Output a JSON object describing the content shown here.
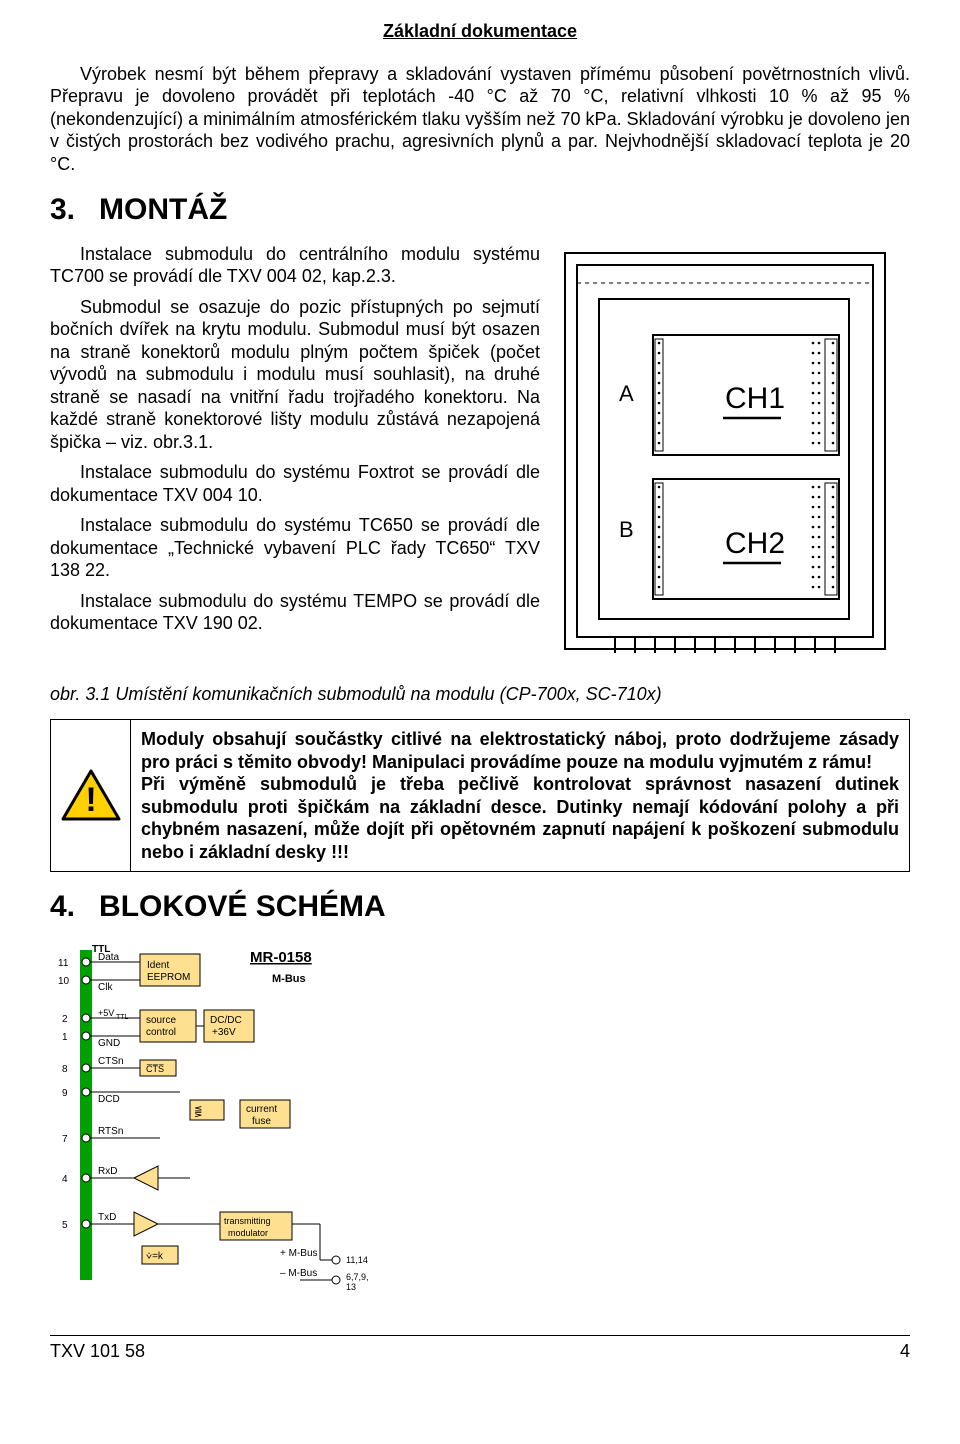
{
  "header": {
    "title": "Základní dokumentace"
  },
  "intro": {
    "p1": "Výrobek nesmí být během přepravy a skladování vystaven přímému působení povětrnostních vlivů. Přepravu je dovoleno provádět při teplotách -40 °C až 70 °C, relativní vlhkosti 10 % až 95 % (nekondenzující) a minimálním atmosférickém tlaku vyšším než 70 kPa. Skladování výrobku je dovoleno jen v čistých prostorách bez vodivého prachu, agresivních plynů a par. Nejvhodnější skladovací teplota je 20 °C."
  },
  "sections": {
    "s3": {
      "num": "3.",
      "title": "MONTÁŽ"
    },
    "s4": {
      "num": "4.",
      "title": "BLOKOVÉ SCHÉMA"
    }
  },
  "montaz": {
    "p1": "Instalace submodulu do centrálního modulu systému TC700 se provádí dle TXV 004 02, kap.2.3.",
    "p2": "Submodul se osazuje do pozic přístupných po sejmutí bočních dvířek na krytu modulu. Submodul musí být osazen na straně konektorů modulu plným počtem špiček (počet vývodů na submodulu i modulu musí souhlasit), na druhé straně se nasadí na vnitřní řadu trojřadého konektoru. Na každé straně konektorové lišty modulu zůstává nezapojená špička – viz. obr.3.1.",
    "p3": "Instalace submodulu do systému Foxtrot se provádí dle dokumentace TXV 004 10.",
    "p4": "Instalace submodulu do systému TC650 se provádí dle dokumentace „Technické vybavení PLC řady TC650“ TXV 138 22.",
    "p5": "Instalace submodulu do systému TEMPO se provádí dle dokumentace TXV 190 02."
  },
  "figure31": {
    "caption": "obr. 3.1 Umístění komunikačních submodulů na modulu (CP-700x, SC-710x)",
    "labels": {
      "A": "A",
      "B": "B",
      "CH1": "CH1",
      "CH2": "CH2"
    },
    "stroke": "#000000",
    "fill": "#ffffff",
    "pin_color": "#000000"
  },
  "warning": {
    "text": "Moduly obsahují součástky citlivé na elektrostatický náboj, proto dodržujeme zásady pro práci s těmito obvody! Manipulaci provádíme pouze na modulu vyjmutém z rámu!\nPři výměně submodulů je třeba pečlivě kontrolovat správnost nasazení dutinek submodulu proti špičkám na základní desce. Dutinky nemají kódování polohy a při chybném nasazení, může dojít při opětovném zapnutí napájení k poškození submodulu nebo i základní desky !!!",
    "icon_colors": {
      "border": "#000000",
      "fill": "#ffd000",
      "mark": "#000000"
    }
  },
  "block_diagram": {
    "title": "MR-0158",
    "subtitle": "M-Bus",
    "accent": "#00a000",
    "box_fill": "#ffe090",
    "stroke": "#000000",
    "pins": [
      {
        "n": "11",
        "label": "Data",
        "group": "TTL"
      },
      {
        "n": "10",
        "label": "Clk",
        "group": "TTL"
      },
      {
        "n": "2",
        "label": "+5V_TTL"
      },
      {
        "n": "1",
        "label": "GND"
      },
      {
        "n": "8",
        "label": "CTSn"
      },
      {
        "n": "9",
        "label": "DCD"
      },
      {
        "n": "7",
        "label": "RTSn"
      },
      {
        "n": "4",
        "label": "RxD"
      },
      {
        "n": "5",
        "label": "TxD"
      }
    ],
    "boxes": {
      "ident": "Ident\nEEPROM",
      "src": "source\ncontrol",
      "dcdc": "DC/DC\n+36V",
      "cts": "CTS",
      "fuse": "current\nfuse",
      "xmit": "transmitting\nmodulator"
    },
    "mbus": {
      "plus": "+ M-Bus",
      "minus": "– M-Bus",
      "plus_pins": "11,14",
      "minus_pins": "6,7,9,\n13"
    }
  },
  "footer": {
    "code": "TXV 101 58",
    "page": "4"
  }
}
